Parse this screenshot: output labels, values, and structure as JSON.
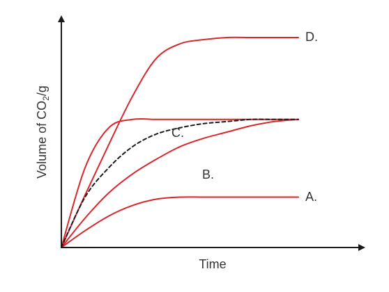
{
  "chart_data": {
    "type": "line",
    "title": "",
    "xlabel": "Time",
    "ylabel": {
      "prefix": "Volume of CO",
      "subscript": "2",
      "suffix": "/g"
    },
    "x_ticks": "none",
    "y_ticks": "none",
    "xlim": [
      0,
      100
    ],
    "ylim": [
      0,
      100
    ],
    "grid": false,
    "legend": "none",
    "series": [
      {
        "name": "A.",
        "color": "#d9262b",
        "style": "solid",
        "x": [
          0,
          10,
          20,
          30,
          40,
          50,
          60,
          70,
          80,
          90,
          100
        ],
        "y": [
          0,
          8,
          15,
          20,
          23,
          24,
          24,
          24,
          24,
          24,
          24
        ]
      },
      {
        "name": "B.",
        "color": "#d9262b",
        "style": "solid",
        "x": [
          0,
          10,
          20,
          30,
          40,
          50,
          60,
          70,
          80,
          90,
          100
        ],
        "y": [
          0,
          14,
          26,
          35,
          42,
          48,
          52,
          55,
          58,
          60,
          61
        ]
      },
      {
        "name": "C.",
        "color": "#d9262b",
        "style": "solid",
        "x": [
          0,
          10,
          20,
          30,
          40,
          50,
          60,
          70,
          80,
          90,
          100
        ],
        "y": [
          0,
          38,
          57,
          61,
          61,
          61,
          61,
          61,
          61,
          61,
          61
        ]
      },
      {
        "name": "D.",
        "color": "#d9262b",
        "style": "solid",
        "x": [
          0,
          10,
          20,
          30,
          40,
          50,
          60,
          70,
          80,
          90,
          100
        ],
        "y": [
          0,
          25,
          49,
          72,
          90,
          97,
          99,
          100,
          100,
          100,
          100
        ]
      },
      {
        "name": "",
        "color": "#1a1a1a",
        "style": "dashed",
        "x": [
          0,
          10,
          20,
          30,
          40,
          50,
          60,
          70,
          80,
          90,
          100
        ],
        "y": [
          0,
          24,
          38,
          48,
          54,
          57,
          59,
          60,
          61,
          61,
          61
        ]
      }
    ]
  }
}
